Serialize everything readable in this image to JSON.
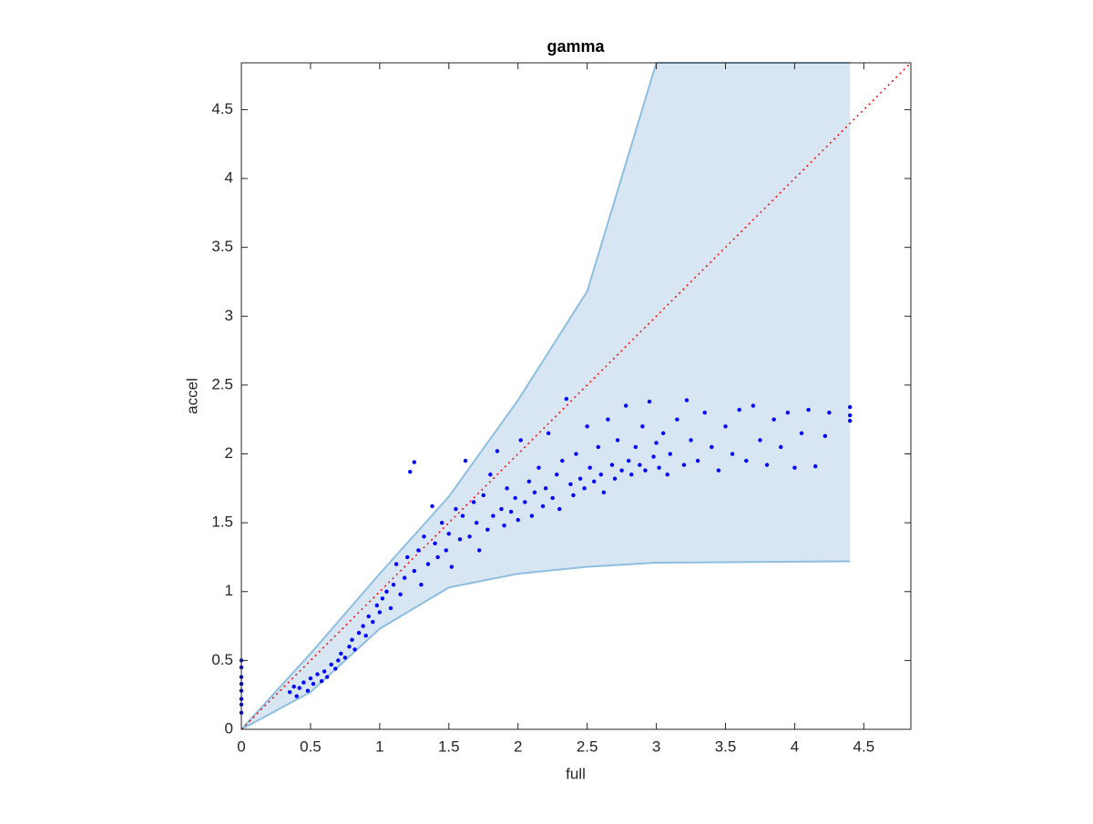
{
  "chart_data": {
    "type": "scatter",
    "title": "gamma",
    "x_label": "full",
    "y_label": "accel",
    "xlim": [
      0,
      4.84
    ],
    "ylim": [
      0,
      4.84
    ],
    "xticks": [
      0,
      0.5,
      1,
      1.5,
      2,
      2.5,
      3,
      3.5,
      4,
      4.5
    ],
    "yticks": [
      0,
      0.5,
      1,
      1.5,
      2,
      2.5,
      3,
      3.5,
      4,
      4.5
    ],
    "color": "#0000ff",
    "x": [
      0,
      0,
      0,
      0,
      0,
      0,
      0,
      0,
      0.35,
      0.38,
      0.4,
      0.42,
      0.45,
      0.48,
      0.5,
      0.52,
      0.55,
      0.58,
      0.6,
      0.62,
      0.65,
      0.68,
      0.7,
      0.72,
      0.75,
      0.78,
      0.8,
      0.82,
      0.85,
      0.88,
      0.9,
      0.92,
      0.95,
      0.98,
      1.0,
      1.02,
      1.05,
      1.08,
      1.1,
      1.12,
      1.15,
      1.18,
      1.2,
      1.22,
      1.25,
      1.25,
      1.28,
      1.3,
      1.32,
      1.35,
      1.38,
      1.4,
      1.42,
      1.45,
      1.48,
      1.5,
      1.52,
      1.55,
      1.58,
      1.6,
      1.62,
      1.65,
      1.68,
      1.7,
      1.72,
      1.75,
      1.78,
      1.8,
      1.82,
      1.85,
      1.88,
      1.9,
      1.92,
      1.95,
      1.98,
      2.0,
      2.02,
      2.05,
      2.08,
      2.1,
      2.12,
      2.15,
      2.18,
      2.2,
      2.22,
      2.25,
      2.28,
      2.3,
      2.32,
      2.35,
      2.38,
      2.4,
      2.42,
      2.45,
      2.48,
      2.5,
      2.52,
      2.55,
      2.58,
      2.6,
      2.62,
      2.65,
      2.68,
      2.7,
      2.72,
      2.75,
      2.78,
      2.8,
      2.82,
      2.85,
      2.88,
      2.9,
      2.92,
      2.95,
      2.98,
      3.0,
      3.02,
      3.05,
      3.08,
      3.1,
      3.15,
      3.2,
      3.22,
      3.25,
      3.3,
      3.35,
      3.4,
      3.45,
      3.5,
      3.55,
      3.6,
      3.65,
      3.7,
      3.75,
      3.8,
      3.85,
      3.9,
      3.95,
      4.0,
      4.05,
      4.1,
      4.15,
      4.22,
      4.25,
      4.4,
      4.4,
      4.4
    ],
    "values": [
      0.12,
      0.18,
      0.22,
      0.28,
      0.33,
      0.38,
      0.45,
      0.5,
      0.27,
      0.31,
      0.24,
      0.3,
      0.34,
      0.28,
      0.37,
      0.33,
      0.4,
      0.35,
      0.42,
      0.38,
      0.47,
      0.44,
      0.5,
      0.55,
      0.52,
      0.6,
      0.65,
      0.58,
      0.7,
      0.75,
      0.68,
      0.82,
      0.78,
      0.9,
      0.85,
      0.95,
      1.0,
      0.88,
      1.05,
      1.2,
      0.98,
      1.1,
      1.25,
      1.87,
      1.94,
      1.15,
      1.3,
      1.05,
      1.4,
      1.2,
      1.62,
      1.35,
      1.25,
      1.5,
      1.3,
      1.42,
      1.18,
      1.6,
      1.38,
      1.55,
      1.95,
      1.4,
      1.65,
      1.5,
      1.3,
      1.7,
      1.45,
      1.85,
      1.55,
      2.02,
      1.6,
      1.48,
      1.75,
      1.58,
      1.68,
      1.52,
      2.1,
      1.65,
      1.8,
      1.55,
      1.72,
      1.9,
      1.62,
      1.75,
      2.15,
      1.68,
      1.85,
      1.6,
      1.95,
      2.4,
      1.78,
      1.7,
      2.0,
      1.82,
      1.75,
      2.2,
      1.9,
      1.8,
      2.05,
      1.85,
      1.72,
      2.25,
      1.92,
      1.82,
      2.1,
      1.88,
      2.35,
      1.95,
      1.85,
      2.05,
      1.92,
      2.2,
      1.88,
      2.38,
      1.98,
      2.08,
      1.9,
      2.15,
      1.85,
      2.0,
      2.25,
      1.92,
      2.39,
      2.1,
      1.95,
      2.3,
      2.05,
      1.88,
      2.2,
      2.0,
      2.32,
      1.95,
      2.35,
      2.1,
      1.92,
      2.25,
      2.05,
      2.3,
      1.9,
      2.15,
      2.32,
      1.91,
      2.13,
      2.3,
      2.24,
      2.34,
      2.28
    ],
    "band": {
      "x": [
        0,
        0.5,
        1,
        1.5,
        2,
        2.5,
        3,
        4.4
      ],
      "upper": [
        0,
        0.55,
        1.13,
        1.69,
        2.39,
        3.18,
        4.84,
        4.84
      ],
      "lower": [
        0,
        0.27,
        0.73,
        1.03,
        1.13,
        1.18,
        1.21,
        1.22
      ],
      "fill": "#d7e6f2",
      "edge": "#8ebee0"
    },
    "reference_line": {
      "x": [
        0,
        4.84
      ],
      "y": [
        0,
        4.84
      ],
      "color": "#ff0000"
    }
  }
}
